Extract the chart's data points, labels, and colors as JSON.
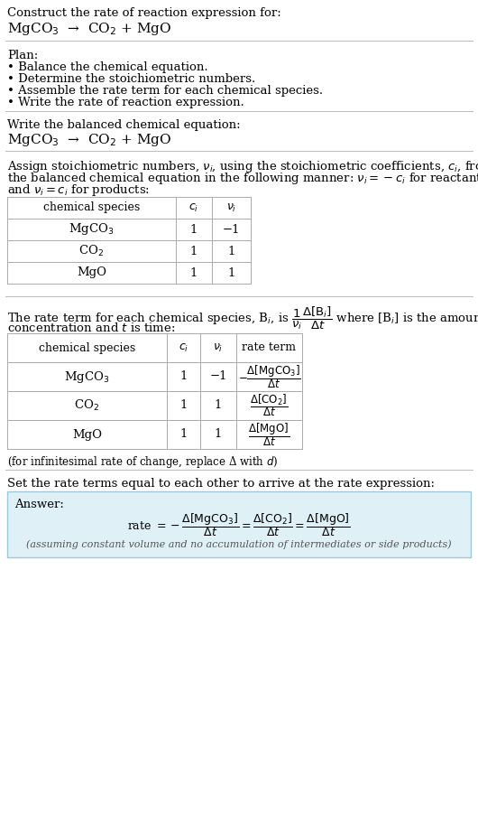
{
  "bg_color": "#ffffff",
  "text_color": "#000000",
  "answer_bg": "#dff0f7",
  "answer_border": "#a0c8d8",
  "title_line1": "Construct the rate of reaction expression for:",
  "reaction_equation": "MgCO$_3$  →  CO$_2$ + MgO",
  "plan_header": "Plan:",
  "plan_items": [
    "• Balance the chemical equation.",
    "• Determine the stoichiometric numbers.",
    "• Assemble the rate term for each chemical species.",
    "• Write the rate of reaction expression."
  ],
  "section2_header": "Write the balanced chemical equation:",
  "section2_eq": "MgCO$_3$  →  CO$_2$ + MgO",
  "section3_lines": [
    "Assign stoichiometric numbers, $\\nu_i$, using the stoichiometric coefficients, $c_i$, from",
    "the balanced chemical equation in the following manner: $\\nu_i = -c_i$ for reactants",
    "and $\\nu_i = c_i$ for products:"
  ],
  "table1_headers": [
    "chemical species",
    "$c_i$",
    "$\\nu_i$"
  ],
  "table1_rows": [
    [
      "MgCO$_3$",
      "1",
      "−1"
    ],
    [
      "CO$_2$",
      "1",
      "1"
    ],
    [
      "MgO",
      "1",
      "1"
    ]
  ],
  "section4_line1": "The rate term for each chemical species, B$_i$, is $\\dfrac{1}{\\nu_i}\\dfrac{\\Delta[\\mathrm{B}_i]}{\\Delta t}$ where [B$_i$] is the amount",
  "section4_line2": "concentration and $t$ is time:",
  "table2_headers": [
    "chemical species",
    "$c_i$",
    "$\\nu_i$",
    "rate term"
  ],
  "table2_rows": [
    [
      "MgCO$_3$",
      "1",
      "−1",
      "$-\\dfrac{\\Delta[\\mathrm{MgCO_3}]}{\\Delta t}$"
    ],
    [
      "CO$_2$",
      "1",
      "1",
      "$\\dfrac{\\Delta[\\mathrm{CO_2}]}{\\Delta t}$"
    ],
    [
      "MgO",
      "1",
      "1",
      "$\\dfrac{\\Delta[\\mathrm{MgO}]}{\\Delta t}$"
    ]
  ],
  "infinitesimal_note": "(for infinitesimal rate of change, replace Δ with $d$)",
  "section5_text": "Set the rate terms equal to each other to arrive at the rate expression:",
  "answer_label": "Answer:",
  "answer_eq": "rate $= -\\dfrac{\\Delta[\\mathrm{MgCO_3}]}{\\Delta t} = \\dfrac{\\Delta[\\mathrm{CO_2}]}{\\Delta t} = \\dfrac{\\Delta[\\mathrm{MgO}]}{\\Delta t}$",
  "answer_note": "(assuming constant volume and no accumulation of intermediates or side products)"
}
